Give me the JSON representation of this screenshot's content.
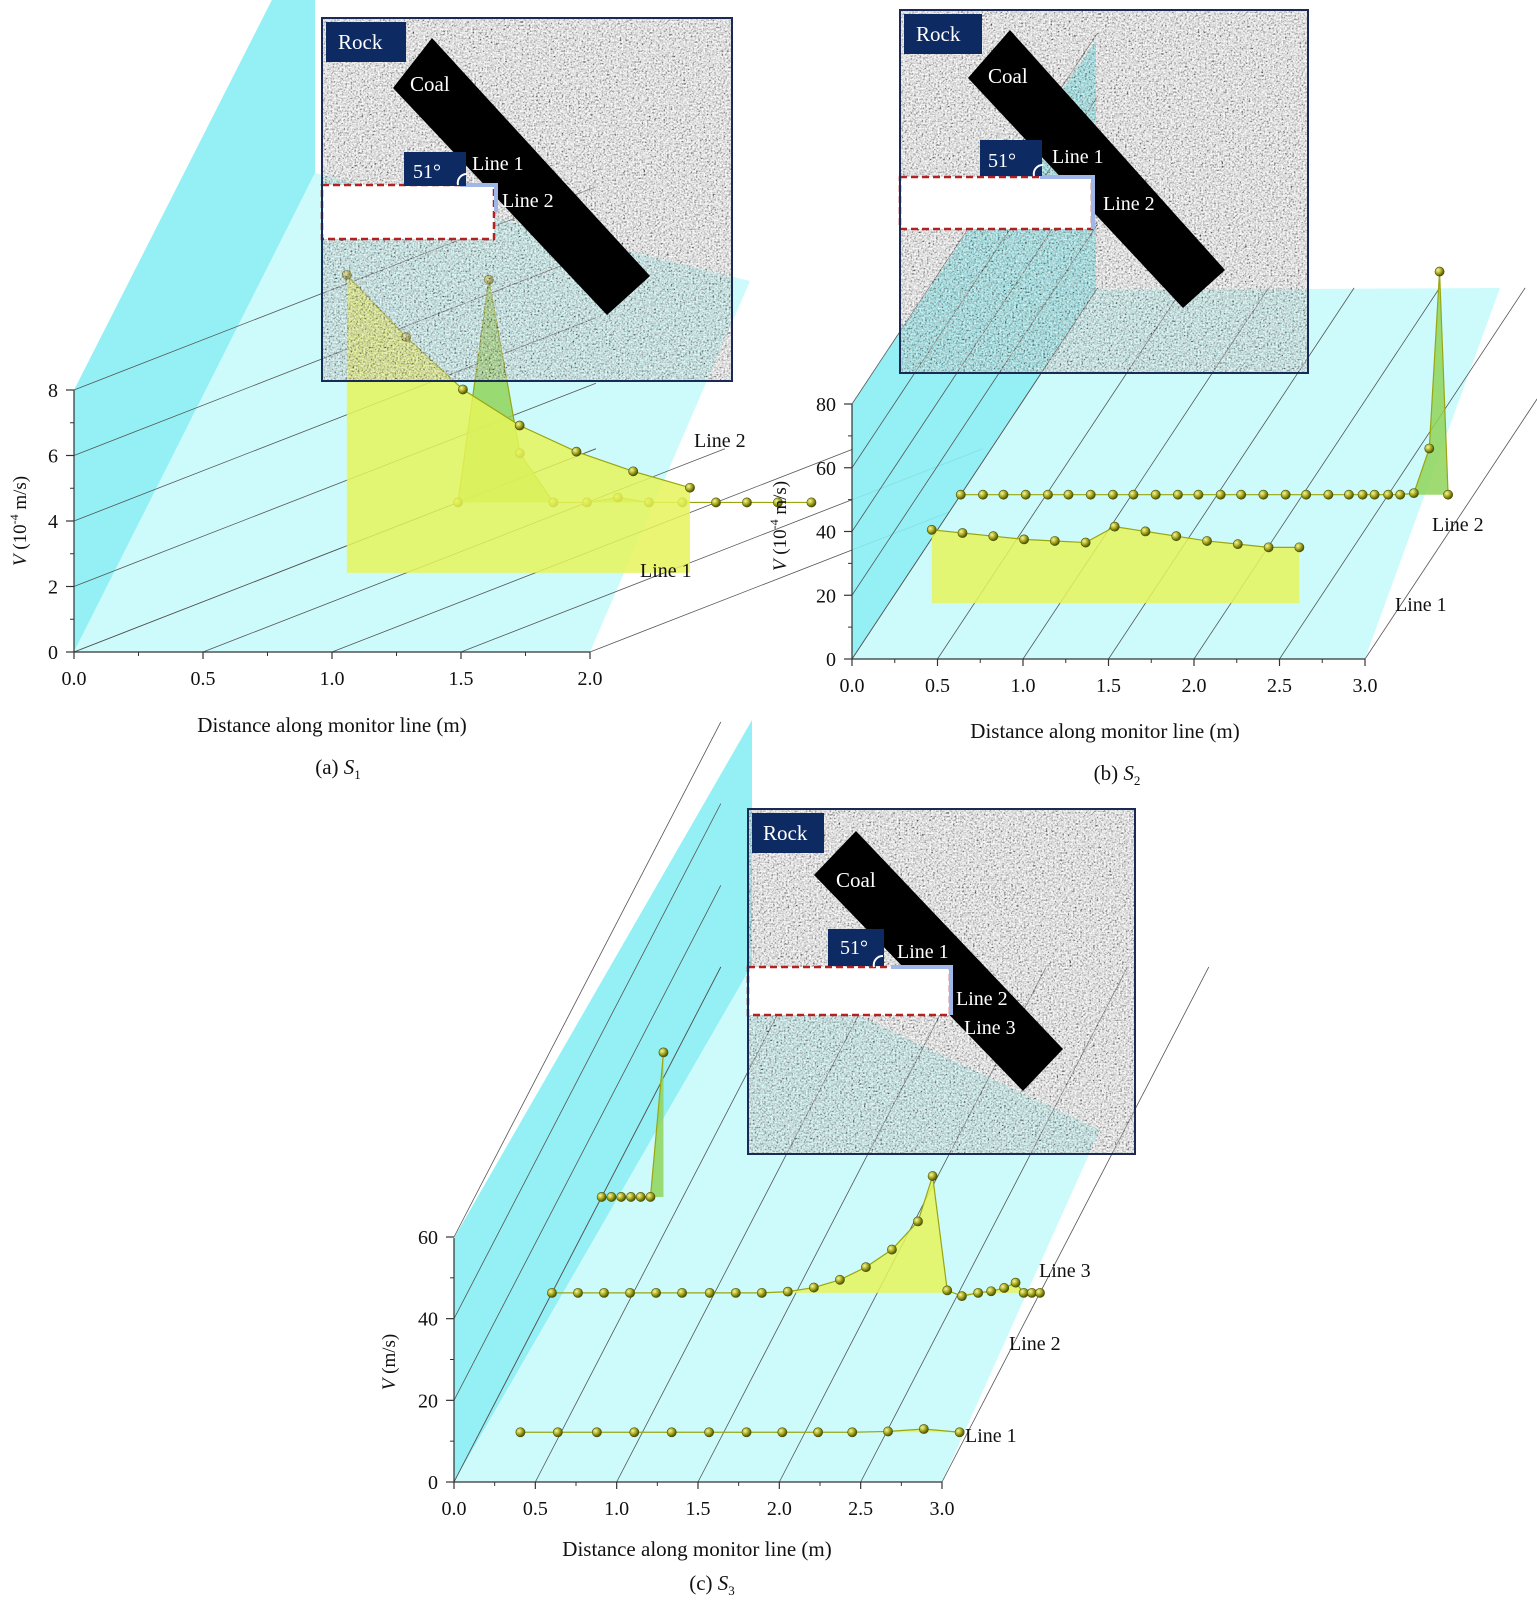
{
  "colors": {
    "plane_light": "#ccfbfb",
    "plane_dark": "#7eeef2",
    "fill_yellow": "#e6f55a",
    "fill_green": "#8fd45a",
    "marker": "#a8a820",
    "inset_label_bg": "#0d2a63",
    "coal": "#000000",
    "opening_border": "#b22222",
    "boundary_line": "#9fb6e8"
  },
  "panels": [
    {
      "caption_prefix": "(a) ",
      "caption_italic": "S",
      "caption_sub": "1",
      "inset_labels": {
        "rock": "Rock",
        "coal": "Coal",
        "angle": "51°",
        "lines": [
          "Line 1",
          "Line 2"
        ]
      }
    },
    {
      "caption_prefix": "(b) ",
      "caption_italic": "S",
      "caption_sub": "2",
      "inset_labels": {
        "rock": "Rock",
        "coal": "Coal",
        "angle": "51°",
        "lines": [
          "Line 1",
          "Line 2"
        ]
      }
    },
    {
      "caption_prefix": "(c) ",
      "caption_italic": "S",
      "caption_sub": "3",
      "inset_labels": {
        "rock": "Rock",
        "coal": "Coal",
        "angle": "51°",
        "lines": [
          "Line 1",
          "Line 2",
          "Line 3"
        ]
      }
    }
  ],
  "chart_data": [
    {
      "type": "line",
      "xlabel": "Distance along monitor line (m)",
      "ylabel_italic": "V",
      "ylabel_rest": " (10",
      "ylabel_sup": "-4",
      "ylabel_end": " m/s)",
      "xlim": [
        0,
        2.0
      ],
      "ylim": [
        0,
        8
      ],
      "xticks": [
        "0.0",
        "0.5",
        "1.0",
        "1.5",
        "2.0"
      ],
      "yticks": [
        "0",
        "2",
        "4",
        "6",
        "8"
      ],
      "series": [
        {
          "name": "Line 1",
          "x": [
            0.27,
            0.5,
            0.72,
            0.94,
            1.16,
            1.38,
            1.6
          ],
          "y": [
            9.1,
            7.2,
            5.6,
            4.5,
            3.7,
            3.1,
            2.6
          ]
        },
        {
          "name": "Line 2",
          "x": [
            0.0,
            0.12,
            0.24,
            0.37,
            0.5,
            0.62,
            0.74,
            0.87,
            1.0,
            1.12,
            1.24,
            1.37
          ],
          "y": [
            0.0,
            6.8,
            1.5,
            0.0,
            0.0,
            0.15,
            0.0,
            0.0,
            0.0,
            0.0,
            0.0,
            0.0
          ]
        }
      ]
    },
    {
      "type": "line",
      "xlabel": "Distance along monitor line (m)",
      "ylabel_italic": "V",
      "ylabel_rest": " (10",
      "ylabel_sup": "-4",
      "ylabel_end": " m/s)",
      "xlim": [
        0,
        3.0
      ],
      "ylim": [
        0,
        80
      ],
      "xticks": [
        "0.0",
        "0.5",
        "1.0",
        "1.5",
        "2.0",
        "2.5",
        "3.0"
      ],
      "yticks": [
        "0",
        "20",
        "40",
        "60",
        "80"
      ],
      "series": [
        {
          "name": "Line 1",
          "x": [
            0.25,
            0.43,
            0.61,
            0.79,
            0.97,
            1.15,
            1.32,
            1.5,
            1.68,
            1.86,
            2.04,
            2.22,
            2.4
          ],
          "y": [
            23,
            22,
            21,
            20,
            19.5,
            19,
            24,
            22.5,
            21,
            19.5,
            18.5,
            17.5,
            17.5
          ]
        },
        {
          "name": "Line 2",
          "x": [
            0.0,
            0.13,
            0.25,
            0.38,
            0.51,
            0.63,
            0.76,
            0.89,
            1.01,
            1.14,
            1.27,
            1.39,
            1.52,
            1.64,
            1.77,
            1.9,
            2.02,
            2.15,
            2.27,
            2.35,
            2.42,
            2.5,
            2.57,
            2.65,
            2.74,
            2.8,
            2.85
          ],
          "y": [
            0,
            0,
            0,
            0,
            0,
            0,
            0,
            0,
            0,
            0,
            0,
            0,
            0,
            0,
            0,
            0,
            0,
            0,
            0,
            0,
            0,
            0,
            0,
            0.5,
            14.5,
            70.0,
            0.0
          ]
        }
      ]
    },
    {
      "type": "line",
      "xlabel": "Distance along monitor line (m)",
      "ylabel_italic": "V",
      "ylabel_rest": " (m/s)",
      "ylabel_sup": "",
      "ylabel_end": "",
      "xlim": [
        0,
        3.0
      ],
      "ylim": [
        0,
        60
      ],
      "xticks": [
        "0.0",
        "0.5",
        "1.0",
        "1.5",
        "2.0",
        "2.5",
        "3.0"
      ],
      "yticks": [
        "0",
        "20",
        "40",
        "60"
      ],
      "series": [
        {
          "name": "Line 1",
          "x": [
            0.25,
            0.48,
            0.72,
            0.95,
            1.18,
            1.41,
            1.64,
            1.86,
            2.08,
            2.29,
            2.51,
            2.73,
            2.95
          ],
          "y": [
            0,
            0,
            0,
            0,
            0,
            0,
            0,
            0,
            0,
            0,
            0.2,
            0.8,
            0.0
          ]
        },
        {
          "name": "Line 2",
          "x": [
            0.0,
            0.16,
            0.32,
            0.48,
            0.64,
            0.8,
            0.97,
            1.13,
            1.29,
            1.45,
            1.61,
            1.77,
            1.93,
            2.09,
            2.25,
            2.34,
            2.43,
            2.52,
            2.62,
            2.7,
            2.78,
            2.85,
            2.9,
            2.95,
            3.0
          ],
          "y": [
            0,
            0,
            0,
            0,
            0,
            0,
            0,
            0,
            0,
            0.3,
            1.3,
            3.2,
            6.3,
            10.6,
            17.5,
            28.6,
            0.6,
            -0.8,
            0.0,
            0.4,
            1.2,
            2.5,
            0.0,
            0.0,
            0.0
          ]
        },
        {
          "name": "Line 3",
          "x": [
            0.0,
            0.06,
            0.12,
            0.18,
            0.24,
            0.3,
            0.38
          ],
          "y": [
            0,
            0,
            0,
            0,
            0,
            0,
            35.4
          ]
        }
      ]
    }
  ]
}
